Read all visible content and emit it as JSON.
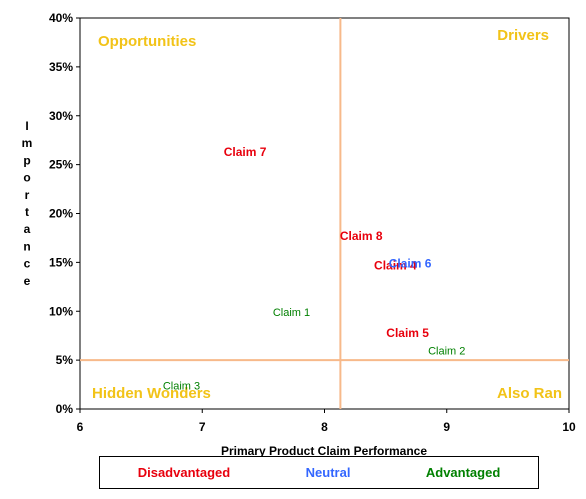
{
  "chart_data": {
    "type": "scatter",
    "xlabel": "Primary Product Claim Performance",
    "ylabel": "Importance",
    "xlim": [
      6,
      10
    ],
    "ylim": [
      0,
      0.4
    ],
    "x_ticks": [
      "6",
      "7",
      "8",
      "9",
      "10"
    ],
    "y_ticks": [
      "0%",
      "5%",
      "10%",
      "15%",
      "20%",
      "25%",
      "30%",
      "35%",
      "40%"
    ],
    "reference_lines": {
      "x": 8.13,
      "y": 0.05
    },
    "quadrants": {
      "top_left": "Opportunities",
      "top_right": "Drivers",
      "bottom_left": "Hidden Wonders",
      "bottom_right": "Also Ran"
    },
    "points": [
      {
        "label": "Claim 7",
        "x": 7.35,
        "y": 0.263,
        "group": "Disadvantaged"
      },
      {
        "label": "Claim 8",
        "x": 8.3,
        "y": 0.177,
        "group": "Disadvantaged"
      },
      {
        "label": "Claim 4",
        "x": 8.58,
        "y": 0.147,
        "group": "Disadvantaged"
      },
      {
        "label": "Claim 6",
        "x": 8.7,
        "y": 0.149,
        "group": "Neutral"
      },
      {
        "label": "Claim 1",
        "x": 7.73,
        "y": 0.099,
        "group": "Advantaged"
      },
      {
        "label": "Claim 5",
        "x": 8.68,
        "y": 0.078,
        "group": "Disadvantaged"
      },
      {
        "label": "Claim 2",
        "x": 9.0,
        "y": 0.06,
        "group": "Advantaged"
      },
      {
        "label": "Claim 3",
        "x": 6.83,
        "y": 0.024,
        "group": "Advantaged"
      }
    ],
    "legend": [
      {
        "name": "Disadvantaged",
        "color": "#e8000d"
      },
      {
        "name": "Neutral",
        "color": "#3366ff"
      },
      {
        "name": "Advantaged",
        "color": "#008000"
      }
    ],
    "colors": {
      "quadrant_label": "#f2c318",
      "reference_line": "#f7b98a"
    }
  }
}
